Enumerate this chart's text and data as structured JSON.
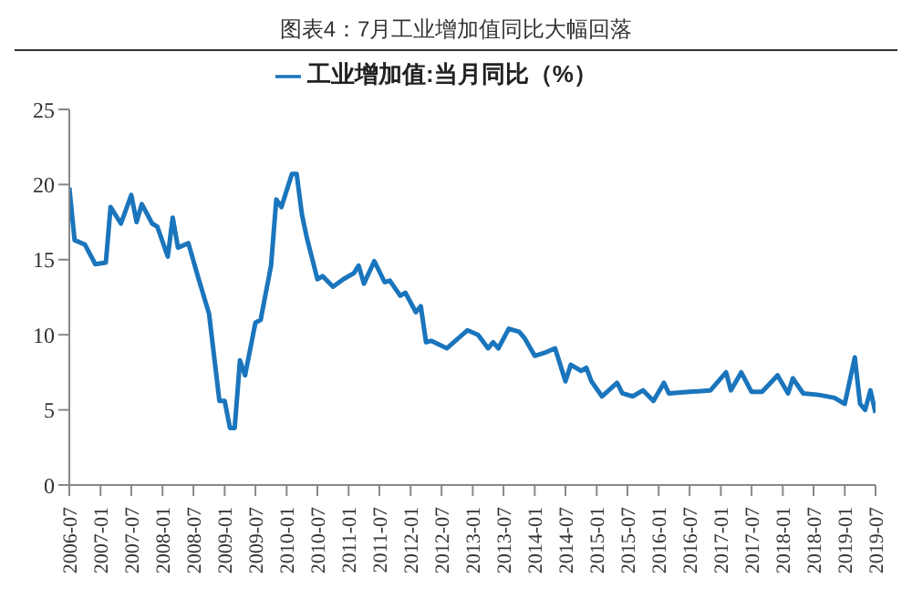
{
  "chart_data": {
    "type": "line",
    "title": "图表4：7月工业增加值同比大幅回落",
    "x": [
      "2006-07",
      "2006-08",
      "2006-10",
      "2006-12",
      "2007-02",
      "2007-03",
      "2007-05",
      "2007-07",
      "2007-08",
      "2007-09",
      "2007-11",
      "2007-12",
      "2008-02",
      "2008-03",
      "2008-04",
      "2008-06",
      "2008-08",
      "2008-10",
      "2008-12",
      "2009-01",
      "2009-02",
      "2009-03",
      "2009-04",
      "2009-05",
      "2009-07",
      "2009-08",
      "2009-10",
      "2009-11",
      "2009-12",
      "2010-02",
      "2010-03",
      "2010-04",
      "2010-05",
      "2010-07",
      "2010-08",
      "2010-10",
      "2010-12",
      "2011-02",
      "2011-03",
      "2011-04",
      "2011-06",
      "2011-08",
      "2011-09",
      "2011-11",
      "2011-12",
      "2012-02",
      "2012-03",
      "2012-04",
      "2012-05",
      "2012-08",
      "2012-12",
      "2013-02",
      "2013-04",
      "2013-05",
      "2013-06",
      "2013-08",
      "2013-10",
      "2013-11",
      "2014-01",
      "2014-03",
      "2014-05",
      "2014-07",
      "2014-08",
      "2014-10",
      "2014-11",
      "2014-12",
      "2015-02",
      "2015-05",
      "2015-06",
      "2015-08",
      "2015-10",
      "2015-12",
      "2016-02",
      "2016-03",
      "2016-07",
      "2016-11",
      "2017-02",
      "2017-03",
      "2017-05",
      "2017-07",
      "2017-09",
      "2017-12",
      "2018-02",
      "2018-03",
      "2018-05",
      "2018-08",
      "2018-11",
      "2019-01",
      "2019-03",
      "2019-04",
      "2019-05",
      "2019-06",
      "2019-07"
    ],
    "series": [
      {
        "name": "工业增加值:当月同比（%）",
        "color": "#1a75bc",
        "values": [
          19.8,
          16.3,
          16.0,
          14.7,
          14.8,
          18.5,
          17.4,
          19.3,
          17.5,
          18.7,
          17.4,
          17.2,
          15.2,
          17.8,
          15.8,
          16.1,
          13.7,
          11.4,
          5.6,
          5.6,
          3.8,
          3.8,
          8.3,
          7.3,
          10.8,
          11.0,
          14.6,
          19.0,
          18.5,
          20.7,
          20.7,
          18.0,
          16.4,
          13.7,
          13.9,
          13.2,
          13.7,
          14.1,
          14.6,
          13.4,
          14.9,
          13.5,
          13.6,
          12.6,
          12.8,
          11.5,
          11.9,
          9.5,
          9.6,
          9.1,
          10.3,
          10.0,
          9.1,
          9.5,
          9.1,
          10.4,
          10.2,
          9.8,
          8.6,
          8.8,
          9.1,
          6.9,
          8.0,
          7.6,
          7.8,
          6.9,
          5.9,
          6.8,
          6.1,
          5.9,
          6.3,
          5.6,
          6.8,
          6.1,
          6.2,
          6.3,
          7.5,
          6.3,
          7.5,
          6.2,
          6.2,
          7.3,
          6.1,
          7.1,
          6.1,
          6.0,
          5.8,
          5.4,
          8.5,
          5.4,
          5.0,
          6.3,
          4.8
        ]
      }
    ],
    "xlim": [
      "2006-07",
      "2019-07"
    ],
    "xticks": [
      "2006-07",
      "2007-01",
      "2007-07",
      "2008-01",
      "2008-07",
      "2009-01",
      "2009-07",
      "2010-01",
      "2010-07",
      "2011-01",
      "2011-07",
      "2012-01",
      "2012-07",
      "2013-01",
      "2013-07",
      "2014-01",
      "2014-07",
      "2015-01",
      "2015-07",
      "2016-01",
      "2016-07",
      "2017-01",
      "2017-07",
      "2018-01",
      "2018-07",
      "2019-01",
      "2019-07"
    ],
    "ylim": [
      0,
      25
    ],
    "yticks": [
      0,
      5,
      10,
      15,
      20,
      25
    ],
    "grid": false,
    "legend": "top",
    "marker": "none",
    "line_style": "solid"
  }
}
